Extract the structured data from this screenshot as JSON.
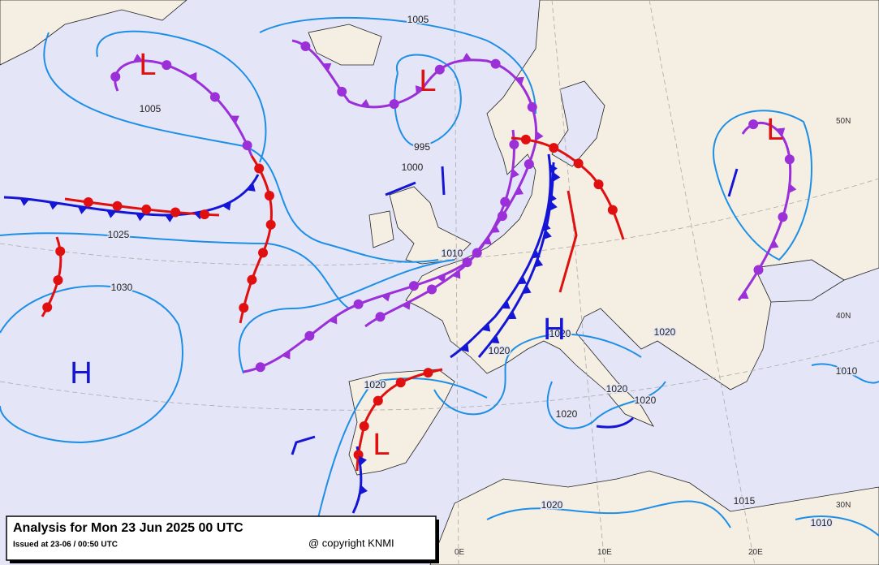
{
  "title": "Analysis for Mon 23 Jun 2025 00 UTC",
  "issued": "Issued at 23-06 / 00:50 UTC",
  "copyright": "@ copyright KNMI",
  "systems": [
    "L",
    "L",
    "L",
    "L",
    "H",
    "H"
  ],
  "isobar_labels": [
    "1005",
    "1005",
    "995",
    "1000",
    "1025",
    "1030",
    "1010",
    "1020",
    "1020",
    "1020",
    "1020",
    "1020",
    "1020",
    "1020",
    "1020",
    "1015",
    "1010",
    "1010"
  ],
  "graticule_labels": [
    "50N",
    "40N",
    "30N",
    "0E",
    "10E",
    "20E"
  ]
}
